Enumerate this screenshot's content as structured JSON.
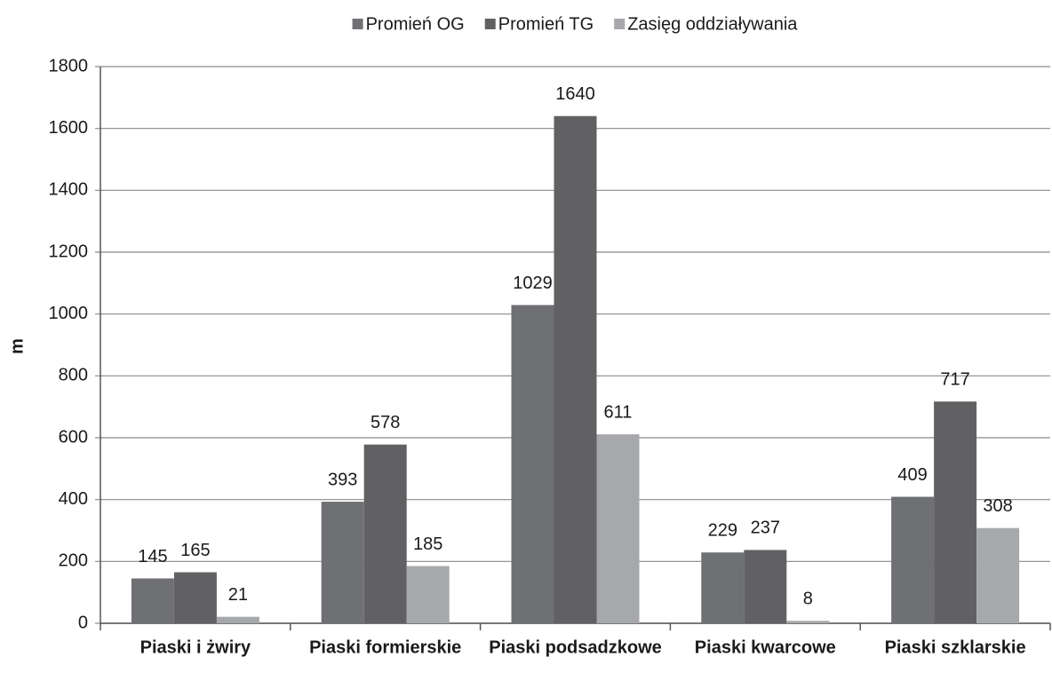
{
  "chart_data": {
    "type": "bar",
    "categories": [
      "Piaski i żwiry",
      "Piaski formierskie",
      "Piaski podsadzkowe",
      "Piaski kwarcowe",
      "Piaski szklarskie"
    ],
    "series": [
      {
        "name": "Promień OG",
        "color": "#6f7073",
        "values": [
          145,
          393,
          1029,
          229,
          409
        ]
      },
      {
        "name": "Promień TG",
        "color": "#616163",
        "values": [
          165,
          578,
          1640,
          237,
          717
        ]
      },
      {
        "name": "Zasięg oddziaływania",
        "color": "#a7a8ab",
        "values": [
          21,
          185,
          611,
          8,
          308
        ]
      }
    ],
    "y_label": "m",
    "ylim": [
      0,
      1800
    ],
    "yticks": [
      0,
      200,
      400,
      600,
      800,
      1000,
      1200,
      1400,
      1600,
      1800
    ],
    "grid": true,
    "legend": "top"
  }
}
